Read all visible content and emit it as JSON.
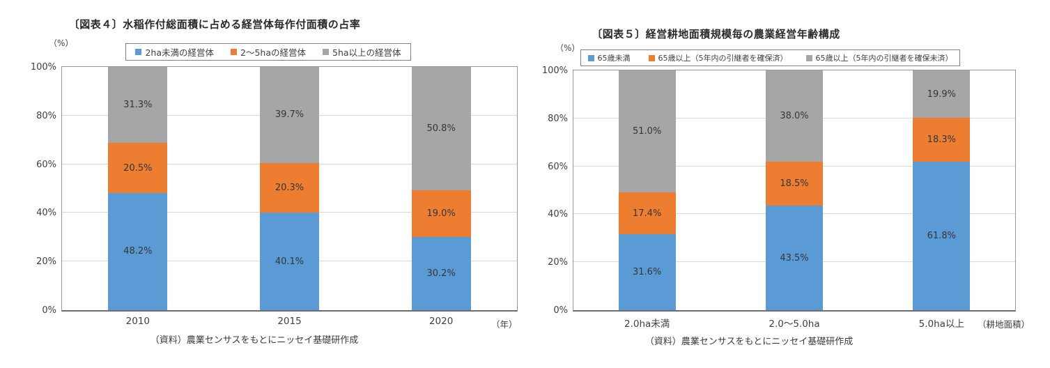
{
  "chart_data": [
    {
      "type": "bar",
      "stacked": true,
      "title": "〔図表４〕水稲作付総面積に占める経営体毎作付面積の占率",
      "y_axis_unit": "（%）",
      "x_axis_unit": "（年）",
      "source": "（資料）農業センサスをもとにニッセイ基礎研作成",
      "ylim": [
        0,
        100
      ],
      "grid": true,
      "legend_position": "top",
      "y_ticks": [
        "0%",
        "20%",
        "40%",
        "60%",
        "80%",
        "100%"
      ],
      "categories": [
        "2010",
        "2015",
        "2020"
      ],
      "series": [
        {
          "name": "2ha未満の経営体",
          "color": "#5B9BD5",
          "values": [
            48.2,
            40.1,
            30.2
          ]
        },
        {
          "name": "2～5haの経営体",
          "color": "#ED7D31",
          "values": [
            20.5,
            20.3,
            19.0
          ]
        },
        {
          "name": "5ha以上の経営体",
          "color": "#A6A6A6",
          "values": [
            31.3,
            39.7,
            50.8
          ]
        }
      ]
    },
    {
      "type": "bar",
      "stacked": true,
      "title": "〔図表５〕経営耕地面積規模毎の農業経営年齢構成",
      "y_axis_unit": "（%）",
      "x_axis_unit": "（耕地面積）",
      "source": "（資料）農業センサスをもとにニッセイ基礎研作成",
      "ylim": [
        0,
        100
      ],
      "grid": true,
      "legend_position": "top",
      "y_ticks": [
        "0%",
        "20%",
        "40%",
        "60%",
        "80%",
        "100%"
      ],
      "categories": [
        "2.0ha未満",
        "2.0～5.0ha",
        "5.0ha以上"
      ],
      "series": [
        {
          "name": "65歳未満",
          "color": "#5B9BD5",
          "values": [
            31.6,
            43.5,
            61.8
          ]
        },
        {
          "name": "65歳以上（5年内の引継者を確保済）",
          "color": "#ED7D31",
          "values": [
            17.4,
            18.5,
            18.3
          ]
        },
        {
          "name": "65歳以上（5年内の引継者を確保未済）",
          "color": "#A6A6A6",
          "values": [
            51.0,
            38.0,
            19.9
          ]
        }
      ]
    }
  ]
}
